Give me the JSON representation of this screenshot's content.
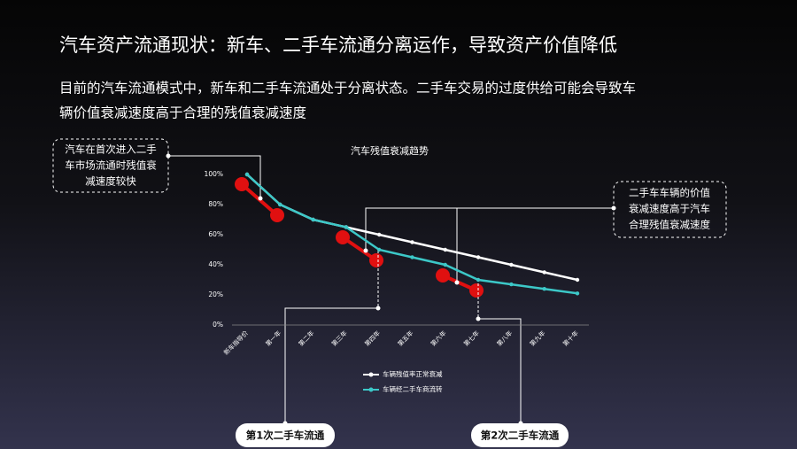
{
  "slide": {
    "title": "汽车资产流通现状：新车、二手车流通分离运作，导致资产价值降低",
    "subtitle_lines": [
      "目前的汽车流通模式中，新车和二手车流通处于分离状态。二手车交易的过度供给可能会导致车",
      "辆价值衰减速度高于合理的残值衰减速度"
    ]
  },
  "chart_data": {
    "type": "line",
    "title": "汽车残值衰减趋势",
    "categories": [
      "新车指导价",
      "第一年",
      "第二年",
      "第三年",
      "第四年",
      "第五年",
      "第六年",
      "第七年",
      "第八年",
      "第九年",
      "第十年"
    ],
    "series": [
      {
        "name": "车辆残值率正常衰减",
        "color": "#ffffff",
        "values": [
          100,
          80,
          70,
          65,
          60,
          55,
          50,
          45,
          40,
          35,
          30
        ]
      },
      {
        "name": "车辆经二手车商流转",
        "color": "#3cc8c8",
        "values": [
          100,
          80,
          70,
          65,
          50,
          45,
          40,
          30,
          27,
          24,
          21
        ]
      }
    ],
    "ylim": [
      0,
      100
    ],
    "yticks": [
      {
        "value": 0,
        "label": "0%"
      },
      {
        "value": 20,
        "label": "20%"
      },
      {
        "value": 40,
        "label": "40%"
      },
      {
        "value": 60,
        "label": "60%"
      },
      {
        "value": 80,
        "label": "80%"
      },
      {
        "value": 100,
        "label": "100%"
      }
    ],
    "legend": "bottom",
    "grid": false
  },
  "annotations": {
    "left_box": [
      "汽车在首次进入二手",
      "车市场流通时残值衰",
      "减速度较快"
    ],
    "right_box": [
      "二手车车辆的价值",
      "衰减速度高于汽车",
      "合理残值衰减速度"
    ],
    "first_flow": "第1次二手车流通",
    "second_flow": "第2次二手车流通"
  }
}
